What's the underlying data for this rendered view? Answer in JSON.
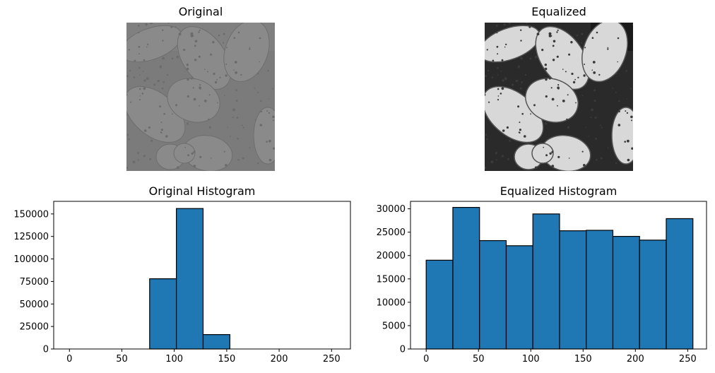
{
  "images": [
    {
      "title": "Original",
      "style": "low-contrast",
      "base_gray": "#7a7a7a"
    },
    {
      "title": "Equalized",
      "style": "high-contrast",
      "base_gray": "#b0b0b0"
    }
  ],
  "chart_data": [
    {
      "type": "bar",
      "title": "Original Histogram",
      "xlim": [
        -15,
        268
      ],
      "ylim": [
        0,
        164000
      ],
      "xticks": [
        0,
        50,
        100,
        150,
        200,
        250
      ],
      "yticks": [
        0,
        25000,
        50000,
        75000,
        100000,
        125000,
        150000
      ],
      "bin_edges": [
        0,
        25.5,
        51,
        76.5,
        102,
        127.5,
        153,
        178.5,
        204,
        229.5,
        255
      ],
      "values": [
        0,
        0,
        0,
        78000,
        156000,
        16000,
        0,
        0,
        0,
        0
      ],
      "bar_color": "#1f77b4",
      "edge_color": "#000000"
    },
    {
      "type": "bar",
      "title": "Equalized Histogram",
      "xlim": [
        -15,
        268
      ],
      "ylim": [
        0,
        31600
      ],
      "xticks": [
        0,
        50,
        100,
        150,
        200,
        250
      ],
      "yticks": [
        0,
        5000,
        10000,
        15000,
        20000,
        25000,
        30000
      ],
      "bin_edges": [
        0,
        25.5,
        51,
        76.5,
        102,
        127.5,
        153,
        178.5,
        204,
        229.5,
        255
      ],
      "values": [
        19000,
        30300,
        23200,
        22100,
        28900,
        25300,
        25400,
        24100,
        23300,
        27900
      ],
      "bar_color": "#1f77b4",
      "edge_color": "#000000"
    }
  ]
}
